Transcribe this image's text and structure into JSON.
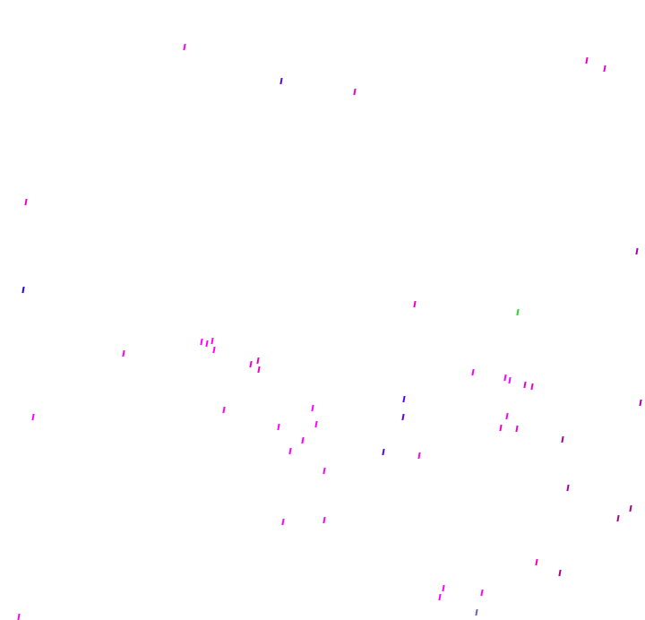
{
  "background_color": "#ffffff",
  "mark_colors": {
    "magenta": "#ff00ff",
    "pink": "#ee00cc",
    "violet": "#5500ff",
    "blue": "#2200ff",
    "green": "#22dd22",
    "purple": "#aa00aa",
    "plum": "#aa0088",
    "slate": "#6666aa"
  }
}
